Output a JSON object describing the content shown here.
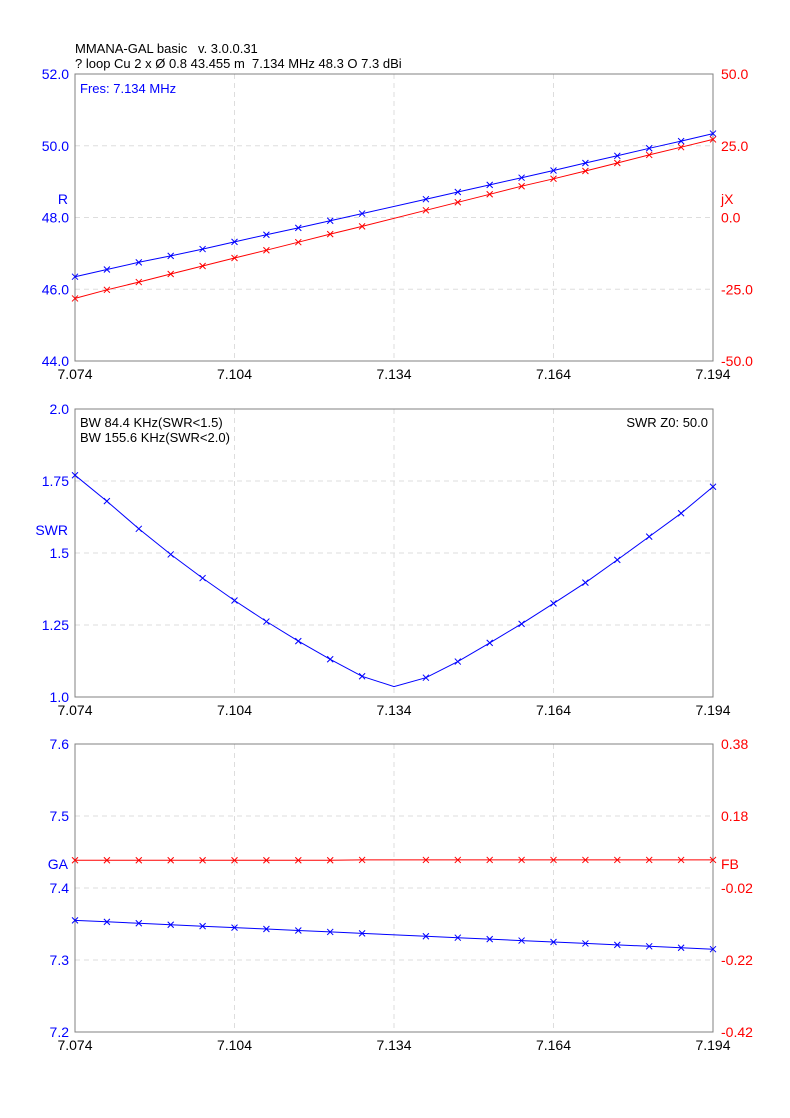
{
  "header": {
    "line1": "MMANA-GAL basic   v. 3.0.0.31",
    "line2": "? loop Cu 2 x Ø 0.8 43.455 m  7.134 MHz 48.3 O 7.3 dBi"
  },
  "colors": {
    "blue": "#0000ff",
    "red": "#ff0000",
    "grid": "#dddddd",
    "frame": "#808080"
  },
  "chart_data": [
    {
      "type": "line",
      "x_ticks": [
        "7.074",
        "7.104",
        "7.134",
        "7.164",
        "7.194"
      ],
      "xlim": [
        7.074,
        7.194
      ],
      "annotation": "Fres: 7.134 MHz",
      "left_axis": {
        "label": "R",
        "ylim": [
          44.0,
          52.0
        ],
        "ticks": [
          "44.0",
          "46.0",
          "48.0",
          "50.0",
          "52.0"
        ]
      },
      "right_axis": {
        "label": "jX",
        "ylim": [
          -50.0,
          50.0
        ],
        "ticks": [
          "-50.0",
          "-25.0",
          "0.0",
          "25.0",
          "50.0"
        ]
      },
      "grid": true,
      "series": [
        {
          "name": "R",
          "axis": "left",
          "color": "#0000ff",
          "x": [
            7.074,
            7.08,
            7.086,
            7.092,
            7.098,
            7.104,
            7.11,
            7.116,
            7.122,
            7.128,
            7.14,
            7.146,
            7.152,
            7.158,
            7.164,
            7.17,
            7.176,
            7.182,
            7.188,
            7.194
          ],
          "y": [
            46.35,
            46.55,
            46.75,
            46.93,
            47.12,
            47.32,
            47.52,
            47.71,
            47.91,
            48.11,
            48.51,
            48.71,
            48.91,
            49.11,
            49.31,
            49.52,
            49.72,
            49.93,
            50.13,
            50.34
          ]
        },
        {
          "name": "jX",
          "axis": "right",
          "color": "#ff0000",
          "x": [
            7.074,
            7.08,
            7.086,
            7.092,
            7.098,
            7.104,
            7.11,
            7.116,
            7.122,
            7.128,
            7.14,
            7.146,
            7.152,
            7.158,
            7.164,
            7.17,
            7.176,
            7.182,
            7.188,
            7.194
          ],
          "y": [
            -28.2,
            -25.2,
            -22.5,
            -19.7,
            -16.9,
            -14.1,
            -11.4,
            -8.6,
            -5.8,
            -3.1,
            2.5,
            5.3,
            8.1,
            10.9,
            13.5,
            16.2,
            19.0,
            21.8,
            24.5,
            27.2
          ]
        }
      ]
    },
    {
      "type": "line",
      "x_ticks": [
        "7.074",
        "7.104",
        "7.134",
        "7.164",
        "7.194"
      ],
      "xlim": [
        7.074,
        7.194
      ],
      "annotations": [
        "BW 84.4 KHz(SWR<1.5)",
        "BW 155.6 KHz(SWR<2.0)"
      ],
      "annotation_right": "SWR Z0: 50.0",
      "left_axis": {
        "label": "SWR",
        "ylim": [
          1.0,
          2.0
        ],
        "ticks": [
          "1.0",
          "1.25",
          "1.5",
          "1.75",
          "2.0"
        ]
      },
      "grid": true,
      "series": [
        {
          "name": "SWR",
          "axis": "left",
          "color": "#0000ff",
          "x": [
            7.074,
            7.08,
            7.086,
            7.092,
            7.098,
            7.104,
            7.11,
            7.116,
            7.122,
            7.128,
            7.134,
            7.14,
            7.146,
            7.152,
            7.158,
            7.164,
            7.17,
            7.176,
            7.182,
            7.188,
            7.194
          ],
          "y": [
            1.77,
            1.68,
            1.584,
            1.495,
            1.413,
            1.335,
            1.262,
            1.194,
            1.131,
            1.072,
            1.036,
            1.067,
            1.123,
            1.188,
            1.254,
            1.325,
            1.397,
            1.476,
            1.557,
            1.638,
            1.73
          ],
          "marked": [
            true,
            true,
            true,
            true,
            true,
            true,
            true,
            true,
            true,
            true,
            false,
            true,
            true,
            true,
            true,
            true,
            true,
            true,
            true,
            true,
            true
          ]
        }
      ]
    },
    {
      "type": "line",
      "x_ticks": [
        "7.074",
        "7.104",
        "7.134",
        "7.164",
        "7.194"
      ],
      "xlim": [
        7.074,
        7.194
      ],
      "left_axis": {
        "label": "GA",
        "ylim": [
          7.2,
          7.6
        ],
        "ticks": [
          "7.2",
          "7.3",
          "7.4",
          "7.5",
          "7.6"
        ]
      },
      "right_axis": {
        "label": "FB",
        "ylim": [
          -0.42,
          0.38
        ],
        "ticks": [
          "-0.42",
          "-0.22",
          "-0.02",
          "0.18",
          "0.38"
        ]
      },
      "grid": true,
      "series": [
        {
          "name": "GA",
          "axis": "left",
          "color": "#0000ff",
          "x": [
            7.074,
            7.08,
            7.086,
            7.092,
            7.098,
            7.104,
            7.11,
            7.116,
            7.122,
            7.128,
            7.14,
            7.146,
            7.152,
            7.158,
            7.164,
            7.17,
            7.176,
            7.182,
            7.188,
            7.194
          ],
          "y": [
            7.355,
            7.353,
            7.351,
            7.349,
            7.347,
            7.345,
            7.343,
            7.341,
            7.339,
            7.337,
            7.333,
            7.331,
            7.329,
            7.327,
            7.325,
            7.323,
            7.321,
            7.319,
            7.317,
            7.315
          ]
        },
        {
          "name": "FB",
          "axis": "right",
          "color": "#ff0000",
          "x": [
            7.074,
            7.08,
            7.086,
            7.092,
            7.098,
            7.104,
            7.11,
            7.116,
            7.122,
            7.128,
            7.14,
            7.146,
            7.152,
            7.158,
            7.164,
            7.17,
            7.176,
            7.182,
            7.188,
            7.194
          ],
          "y": [
            0.057,
            0.057,
            0.057,
            0.057,
            0.057,
            0.057,
            0.057,
            0.057,
            0.057,
            0.058,
            0.058,
            0.058,
            0.058,
            0.058,
            0.058,
            0.058,
            0.058,
            0.058,
            0.058,
            0.058
          ]
        }
      ]
    }
  ]
}
